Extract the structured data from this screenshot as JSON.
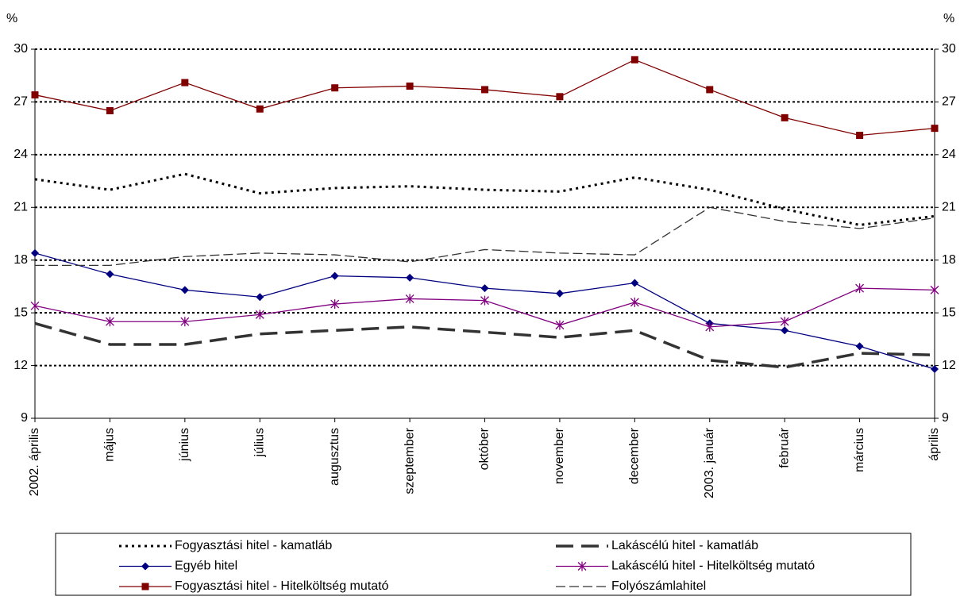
{
  "chart_data": {
    "type": "line",
    "y_label": "%",
    "y2_label": "%",
    "categories": [
      "2002. április",
      "május",
      "június",
      "július",
      "augusztus",
      "szeptember",
      "október",
      "november",
      "december",
      "2003. január",
      "február",
      "március",
      "április"
    ],
    "ylim": [
      9,
      30
    ],
    "yticks": [
      9,
      12,
      15,
      18,
      21,
      24,
      27,
      30
    ],
    "y2lim": [
      9,
      30
    ],
    "y2ticks": [
      9,
      12,
      15,
      18,
      21,
      24,
      27,
      30
    ],
    "grid": true,
    "series": [
      {
        "name": "Fogyasztási hitel - kamatláb",
        "color": "#000000",
        "line_style": "dotted",
        "marker": "none",
        "values": [
          22.6,
          22.0,
          22.9,
          21.8,
          22.1,
          22.2,
          22.0,
          21.9,
          22.7,
          22.0,
          20.9,
          20.0,
          20.5
        ]
      },
      {
        "name": "Lakáscélú hitel - kamatláb",
        "color": "#333333",
        "line_style": "longdash",
        "marker": "none",
        "values": [
          14.4,
          13.2,
          13.2,
          13.8,
          14.0,
          14.2,
          13.9,
          13.6,
          14.0,
          12.3,
          11.9,
          12.7,
          12.6
        ]
      },
      {
        "name": "Egyéb hitel",
        "color": "#000080",
        "line_style": "solid",
        "marker": "diamond",
        "values": [
          18.4,
          17.2,
          16.3,
          15.9,
          17.1,
          17.0,
          16.4,
          16.1,
          16.7,
          14.4,
          14.0,
          13.1,
          11.8
        ]
      },
      {
        "name": "Lakáscélú hitel - Hitelköltség mutató",
        "color": "#800080",
        "line_style": "solid",
        "marker": "star",
        "values": [
          15.4,
          14.5,
          14.5,
          14.9,
          15.5,
          15.8,
          15.7,
          14.3,
          15.6,
          14.2,
          14.5,
          16.4,
          16.3
        ]
      },
      {
        "name": "Fogyasztási hitel - Hitelköltség mutató",
        "color": "#800000",
        "line_style": "solid",
        "marker": "square",
        "values": [
          27.4,
          26.5,
          28.1,
          26.6,
          27.8,
          27.9,
          27.7,
          27.3,
          29.4,
          27.7,
          26.1,
          25.1,
          25.5
        ]
      },
      {
        "name": "Folyószámlahitel",
        "color": "#333333",
        "line_style": "dashed",
        "marker": "none",
        "values": [
          17.7,
          17.7,
          18.2,
          18.4,
          18.3,
          17.9,
          18.6,
          18.4,
          18.3,
          21.0,
          20.2,
          19.8,
          20.4
        ]
      }
    ]
  }
}
